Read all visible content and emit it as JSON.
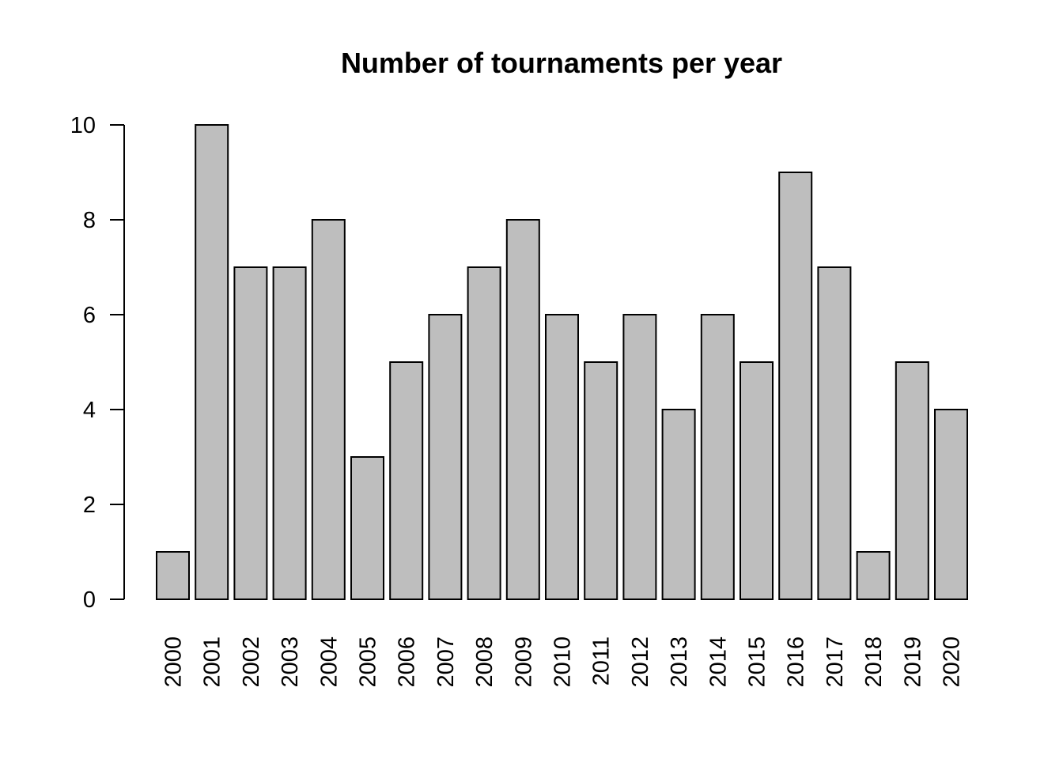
{
  "chart_data": {
    "type": "bar",
    "title": "Number of tournaments per year",
    "xlabel": "",
    "ylabel": "",
    "categories": [
      "2000",
      "2001",
      "2002",
      "2003",
      "2004",
      "2005",
      "2006",
      "2007",
      "2008",
      "2009",
      "2010",
      "2011",
      "2012",
      "2013",
      "2014",
      "2015",
      "2016",
      "2017",
      "2018",
      "2019",
      "2020"
    ],
    "values": [
      1,
      10,
      7,
      7,
      8,
      3,
      5,
      6,
      7,
      8,
      6,
      5,
      6,
      4,
      6,
      5,
      9,
      7,
      1,
      5,
      4
    ],
    "ylim": [
      0,
      10
    ],
    "yticks": [
      "0",
      "2",
      "4",
      "6",
      "8",
      "10"
    ],
    "grid": false,
    "legend": "none",
    "x_tick_orientation": "vertical",
    "bar_color": "#bebebe",
    "bar_border_color": "#000000"
  }
}
